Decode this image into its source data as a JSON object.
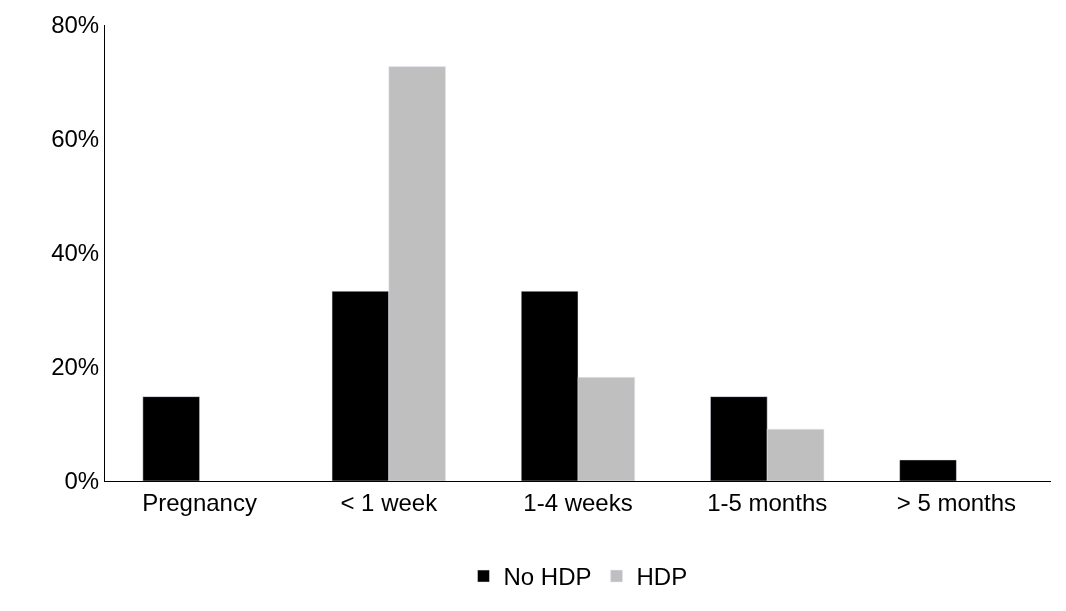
{
  "chart_data": {
    "type": "bar",
    "categories": [
      "Pregnancy",
      "< 1 week",
      "1-4 weeks",
      "1-5 months",
      "> 5 months"
    ],
    "series": [
      {
        "name": "No HDP",
        "color": "#000000",
        "values": [
          14.8,
          33.3,
          33.3,
          14.8,
          3.7
        ]
      },
      {
        "name": "HDP",
        "color": "#bfbfbf",
        "values": [
          null,
          72.7,
          18.2,
          9.1,
          null
        ]
      }
    ],
    "ylim": [
      0,
      80
    ],
    "yticks": [
      {
        "value": 0,
        "label": "0%"
      },
      {
        "value": 20,
        "label": "20%"
      },
      {
        "value": 40,
        "label": "40%"
      },
      {
        "value": 60,
        "label": "60%"
      },
      {
        "value": 80,
        "label": "80%"
      }
    ],
    "legend": "bottom"
  }
}
